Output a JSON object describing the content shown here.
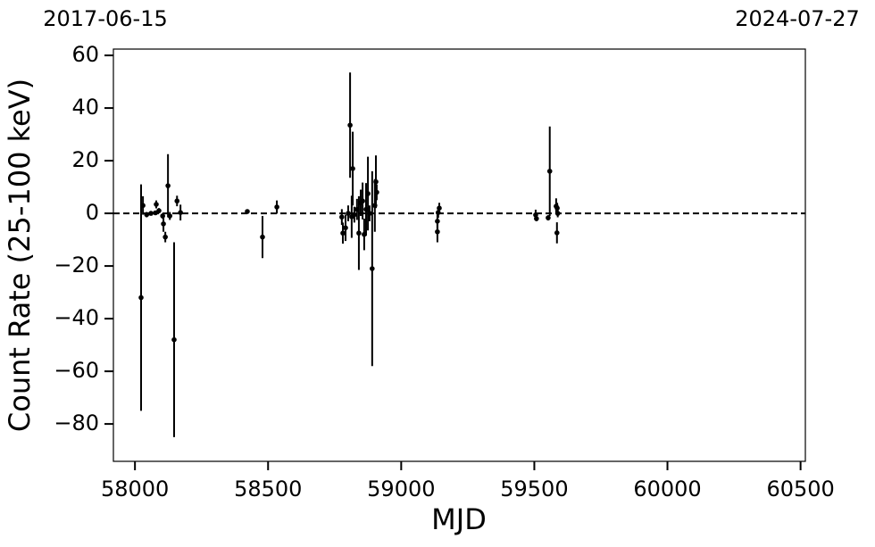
{
  "chart_data": {
    "type": "errorbar",
    "xlabel": "MJD",
    "ylabel": "Count Rate (25-100 keV)",
    "color": "#000000",
    "hline": 0,
    "xlim": [
      57919,
      60518
    ],
    "ylim": [
      -94.2,
      62.4
    ],
    "xticks": [
      58000,
      58500,
      59000,
      59500,
      60000,
      60500
    ],
    "yticks": [
      {
        "value": -80,
        "label": "−80"
      },
      {
        "value": -60,
        "label": "−60"
      },
      {
        "value": -40,
        "label": "−40"
      },
      {
        "value": -20,
        "label": "−20"
      },
      0,
      20,
      40,
      60
    ],
    "top_xticks": [
      {
        "value": 57919,
        "label": "2017-06-15"
      },
      {
        "value": 60518,
        "label": "2024-07-27"
      }
    ],
    "x": [
      58023,
      58030,
      58044,
      58060,
      58077,
      58080,
      58090,
      58104,
      58107,
      58114,
      58124,
      58131,
      58147,
      58158,
      58171,
      58422,
      58479,
      58533,
      58777,
      58781,
      58791,
      58801,
      58808,
      58814,
      58818,
      58824,
      58834,
      58841,
      58848,
      58855,
      58861,
      58868,
      58875,
      58881,
      58891,
      58901,
      58905,
      58908,
      59136,
      59136,
      59139,
      59143,
      59505,
      59508,
      59552,
      59558,
      59582,
      59585,
      59588,
      59586
    ],
    "values": [
      -32,
      3,
      -0.5,
      0,
      0.2,
      3.4,
      1,
      -1,
      -4,
      -9,
      10.5,
      -1,
      -48,
      4.7,
      0.3,
      0.7,
      -9,
      2.4,
      -1.4,
      -7.5,
      -5.5,
      0,
      33.5,
      -1.3,
      17,
      -0.5,
      1.5,
      -7.5,
      4,
      4.7,
      -8,
      1.5,
      7.5,
      0,
      -21,
      3,
      12,
      8,
      -3,
      -7,
      0.3,
      2,
      -0.6,
      -2,
      -1.7,
      16,
      2.7,
      -7.4,
      0,
      2
    ],
    "errors": [
      43,
      3.5,
      1,
      0.5,
      0.5,
      1.5,
      1,
      1,
      3,
      2,
      12,
      1.5,
      37,
      2,
      3,
      0.5,
      8,
      2.5,
      3,
      4,
      5,
      3,
      20,
      8,
      14,
      3,
      4,
      14,
      5,
      7,
      6,
      10,
      14,
      3,
      37,
      10,
      10,
      3,
      3,
      4,
      2,
      2,
      2,
      1,
      1,
      17,
      3,
      4,
      1.5,
      2
    ]
  }
}
